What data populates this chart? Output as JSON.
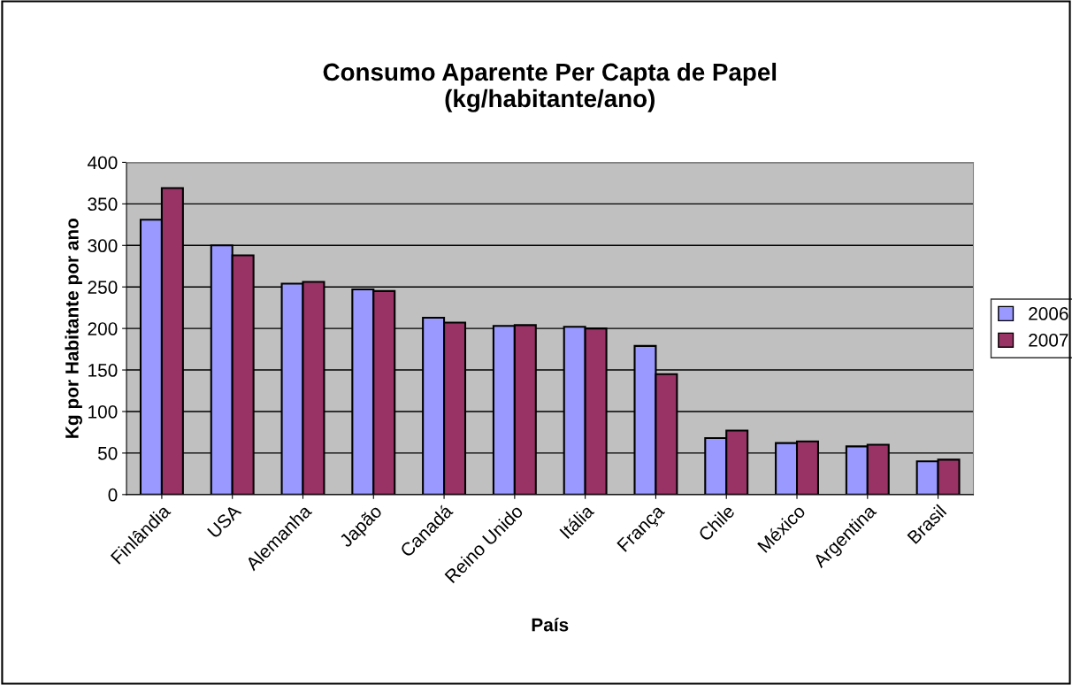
{
  "chart_data": {
    "type": "bar",
    "title": "Consumo Aparente Per Capta de Papel\n(kg/habitante/ano)",
    "xlabel": "País",
    "ylabel": "Kg por Habitante por ano",
    "categories": [
      "Finlândia",
      "USA",
      "Alemanha",
      "Japão",
      "Canadá",
      "Reino Unido",
      "Itália",
      "França",
      "Chile",
      "México",
      "Argentina",
      "Brasil"
    ],
    "series": [
      {
        "name": "2006",
        "color": "#9999ff",
        "values": [
          331,
          300,
          254,
          247,
          213,
          203,
          202,
          179,
          68,
          62,
          58,
          40
        ]
      },
      {
        "name": "2007",
        "color": "#993366",
        "values": [
          369,
          288,
          256,
          245,
          207,
          204,
          200,
          145,
          77,
          64,
          60,
          42
        ]
      }
    ],
    "ylim": [
      0,
      400
    ],
    "yticks": [
      0,
      50,
      100,
      150,
      200,
      250,
      300,
      350,
      400
    ],
    "grid": "y",
    "legend": "right"
  }
}
